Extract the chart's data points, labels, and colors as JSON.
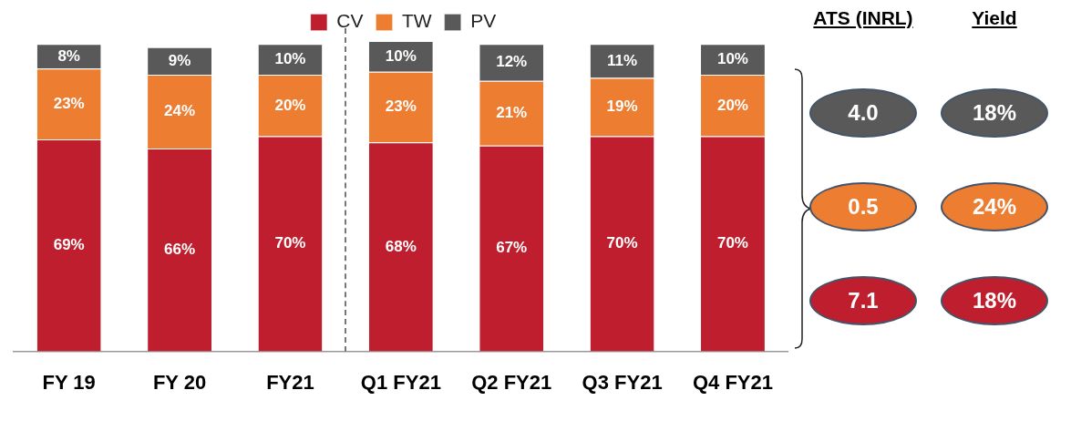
{
  "chart_data": [
    {
      "type": "bar",
      "stacked": true,
      "legend": "top",
      "grid": false,
      "categories": [
        "FY 19",
        "FY 20",
        "FY21",
        "Q1 FY21",
        "Q2 FY21",
        "Q3 FY21",
        "Q4 FY21"
      ],
      "series": [
        {
          "name": "CV",
          "color": "#be1e2d",
          "values": [
            69,
            66,
            70,
            68,
            67,
            70,
            70
          ],
          "value_labels": [
            "69%",
            "66%",
            "70%",
            "68%",
            "67%",
            "70%",
            "70%"
          ]
        },
        {
          "name": "TW",
          "color": "#ed7d31",
          "values": [
            23,
            24,
            20,
            23,
            21,
            19,
            20
          ],
          "value_labels": [
            "23%",
            "24%",
            "20%",
            "23%",
            "21%",
            "19%",
            "20%"
          ]
        },
        {
          "name": "PV",
          "color": "#595959",
          "values": [
            8,
            9,
            10,
            10,
            12,
            11,
            10
          ],
          "value_labels": [
            "8%",
            "9%",
            "10%",
            "10%",
            "12%",
            "11%",
            "10%"
          ]
        }
      ]
    },
    {
      "type": "other",
      "categories": [
        "ATS (INRL)",
        "Yield"
      ],
      "series": [
        {
          "color": "#595959",
          "values": [
            4.0,
            18
          ],
          "value_labels": [
            "4.0",
            "18%"
          ]
        },
        {
          "color": "#ed7d31",
          "values": [
            0.5,
            24
          ],
          "value_labels": [
            "0.5",
            "24%"
          ]
        },
        {
          "color": "#be1e2d",
          "values": [
            7.1,
            18
          ],
          "value_labels": [
            "7.1",
            "18%"
          ]
        }
      ]
    }
  ]
}
